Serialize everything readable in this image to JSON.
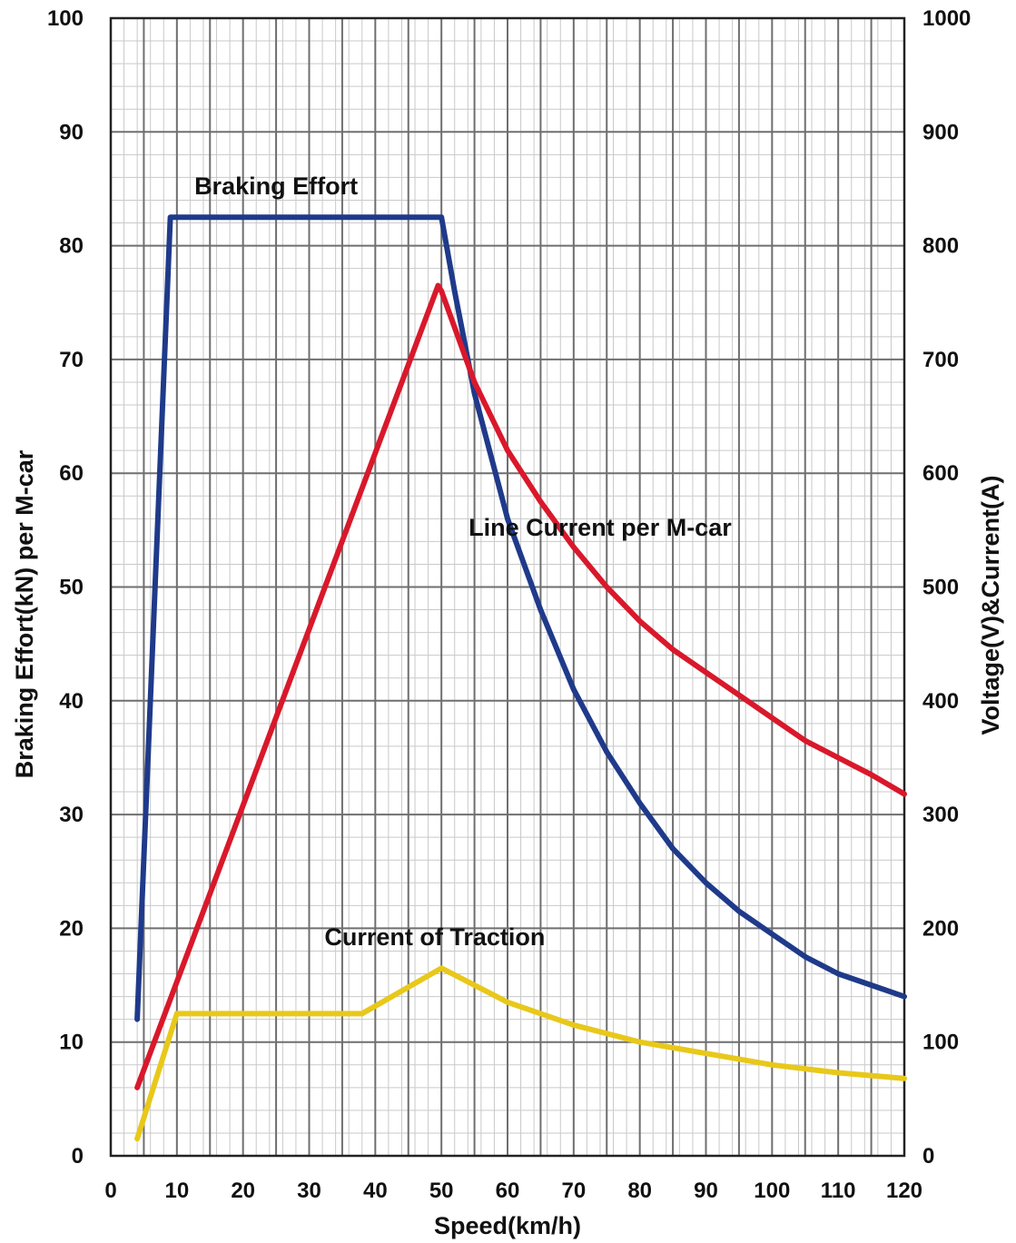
{
  "chart_data": {
    "type": "line",
    "title": "",
    "xlabel": "Speed(km/h)",
    "ylabel_left": "Braking Effort(kN) per M-car",
    "ylabel_right": "Voltage(V)&Current(A)",
    "xlim": [
      0,
      120
    ],
    "ylim_left": [
      0,
      100
    ],
    "ylim_right": [
      0,
      1000
    ],
    "x_ticks": [
      0,
      10,
      20,
      30,
      40,
      50,
      60,
      70,
      80,
      90,
      100,
      110,
      120
    ],
    "y_left_ticks": [
      0,
      10,
      20,
      30,
      40,
      50,
      60,
      70,
      80,
      90,
      100
    ],
    "y_right_ticks": [
      0,
      100,
      200,
      300,
      400,
      500,
      600,
      700,
      800,
      900,
      1000
    ],
    "grid": true,
    "series": [
      {
        "name": "Braking Effort",
        "axis": "left",
        "color": "#1f3a8a",
        "x": [
          4,
          9,
          50,
          52,
          55,
          60,
          65,
          70,
          75,
          80,
          85,
          90,
          95,
          100,
          105,
          110,
          115,
          120
        ],
        "y": [
          12,
          82.5,
          82.5,
          76,
          67,
          56,
          48,
          41,
          35.5,
          31,
          27,
          24,
          21.5,
          19.5,
          17.5,
          16,
          15,
          14
        ]
      },
      {
        "name": "Line Current per M-car",
        "axis": "right",
        "color": "#d9182b",
        "x": [
          4,
          49.5,
          50,
          55,
          60,
          65,
          70,
          75,
          80,
          85,
          90,
          95,
          100,
          105,
          110,
          115,
          120
        ],
        "y": [
          60,
          765,
          760,
          680,
          620,
          575,
          535,
          500,
          470,
          445,
          425,
          405,
          385,
          365,
          350,
          335,
          318
        ]
      },
      {
        "name": "Current of Traction",
        "axis": "right",
        "color": "#e8c81a",
        "x": [
          4,
          10,
          38,
          50,
          60,
          70,
          80,
          90,
          100,
          110,
          120
        ],
        "y": [
          15,
          125,
          125,
          165,
          135,
          115,
          100,
          90,
          80,
          73,
          68
        ]
      }
    ],
    "annotations": [
      {
        "series": "Braking Effort",
        "text": "Braking Effort",
        "x": 25,
        "y_left": 84.5
      },
      {
        "series": "Line Current per M-car",
        "text": "Line Current per M-car",
        "x": 74,
        "y_left": 54.5
      },
      {
        "series": "Current of Traction",
        "text": "Current of Traction",
        "x": 49,
        "y_left": 18.5
      }
    ]
  }
}
